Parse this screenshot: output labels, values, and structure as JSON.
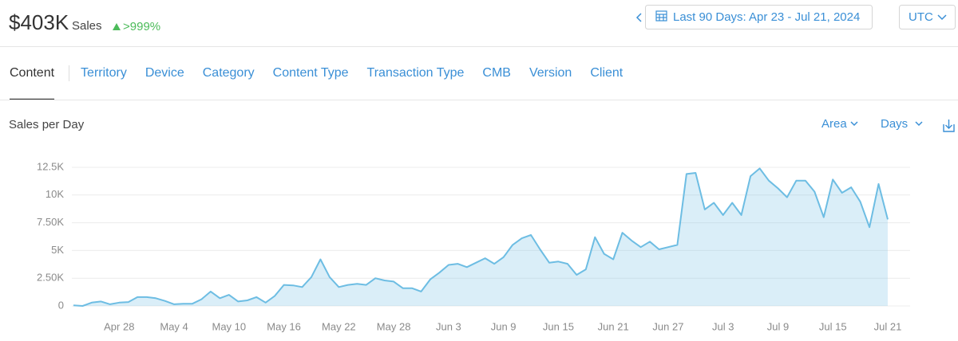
{
  "header": {
    "total": "$403K",
    "label": "Sales",
    "change": ">999%",
    "date_range": "Last 90 Days: Apr 23 - Jul 21, 2024",
    "timezone": "UTC"
  },
  "tabs": [
    "Content",
    "Territory",
    "Device",
    "Category",
    "Content Type",
    "Transaction Type",
    "CMB",
    "Version",
    "Client"
  ],
  "chart_controls": {
    "chart_style": "Area",
    "interval": "Days"
  },
  "chart_data": {
    "type": "area",
    "title": "Sales per Day",
    "color": "#6dbde3",
    "grid": true,
    "categories": [
      null,
      null,
      null,
      null,
      null,
      "Apr 28",
      null,
      null,
      null,
      null,
      null,
      "May 4",
      null,
      null,
      null,
      null,
      null,
      "May 10",
      null,
      null,
      null,
      null,
      null,
      "May 16",
      null,
      null,
      null,
      null,
      null,
      "May 22",
      null,
      null,
      null,
      null,
      null,
      "May 28",
      null,
      null,
      null,
      null,
      null,
      "Jun 3",
      null,
      null,
      null,
      null,
      null,
      "Jun 9",
      null,
      null,
      null,
      null,
      null,
      "Jun 15",
      null,
      null,
      null,
      null,
      null,
      "Jun 21",
      null,
      null,
      null,
      null,
      null,
      "Jun 27",
      null,
      null,
      null,
      null,
      null,
      "Jul 3",
      null,
      null,
      null,
      null,
      null,
      "Jul 9",
      null,
      null,
      null,
      null,
      null,
      "Jul 15",
      null,
      null,
      null,
      null,
      null,
      "Jul 21"
    ],
    "values": [
      50,
      0,
      300,
      400,
      150,
      300,
      350,
      800,
      800,
      700,
      450,
      150,
      200,
      200,
      600,
      1300,
      700,
      1000,
      400,
      500,
      800,
      300,
      900,
      1900,
      1850,
      1700,
      2600,
      4200,
      2600,
      1700,
      1900,
      2000,
      1900,
      2500,
      2300,
      2200,
      1600,
      1600,
      1300,
      2400,
      3000,
      3700,
      3800,
      3500,
      3900,
      4300,
      3800,
      4400,
      5500,
      6100,
      6400,
      5100,
      3900,
      4000,
      3800,
      2800,
      3300,
      6200,
      4700,
      4200,
      6600,
      5900,
      5300,
      5800,
      5100,
      5300,
      5500,
      11900,
      12000,
      8700,
      9300,
      8200,
      9300,
      8200,
      11700,
      12400,
      11300,
      10600,
      9800,
      11300,
      11300,
      10300,
      8000,
      11400,
      10200,
      10700,
      9400,
      7100,
      11000,
      7800
    ],
    "ylim": [
      0,
      12500
    ],
    "yticks": [
      0,
      {
        "value": 2500,
        "label": "2.50K"
      },
      {
        "value": 5000,
        "label": "5K"
      },
      {
        "value": 7500,
        "label": "7.50K"
      },
      {
        "value": 10000,
        "label": "10K"
      },
      {
        "value": 12500,
        "label": "12.5K"
      }
    ]
  }
}
